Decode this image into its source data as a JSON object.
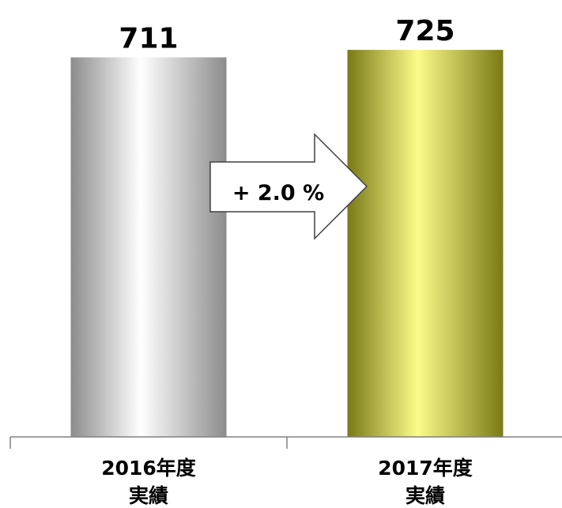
{
  "chart_data": {
    "type": "bar",
    "categories": [
      {
        "line1": "2016年度",
        "line2": "実績"
      },
      {
        "line1": "2017年度",
        "line2": "実績"
      }
    ],
    "values": [
      711,
      725
    ],
    "value_labels": [
      "711",
      "725"
    ],
    "change_label": "+ 2.0 %",
    "bar_styles": [
      "silver-gradient",
      "olive-gradient"
    ],
    "colors": {
      "bar1_edge": "#8c8c8c",
      "bar1_mid": "#ffffff",
      "bar2_edge": "#7a7a16",
      "bar2_mid": "#fbfb8a",
      "axis": "#808080",
      "arrow_stroke": "#404040",
      "arrow_fill": "#ffffff"
    },
    "title": "",
    "xlabel": "",
    "ylabel": "",
    "legend": "none",
    "grid": false
  }
}
